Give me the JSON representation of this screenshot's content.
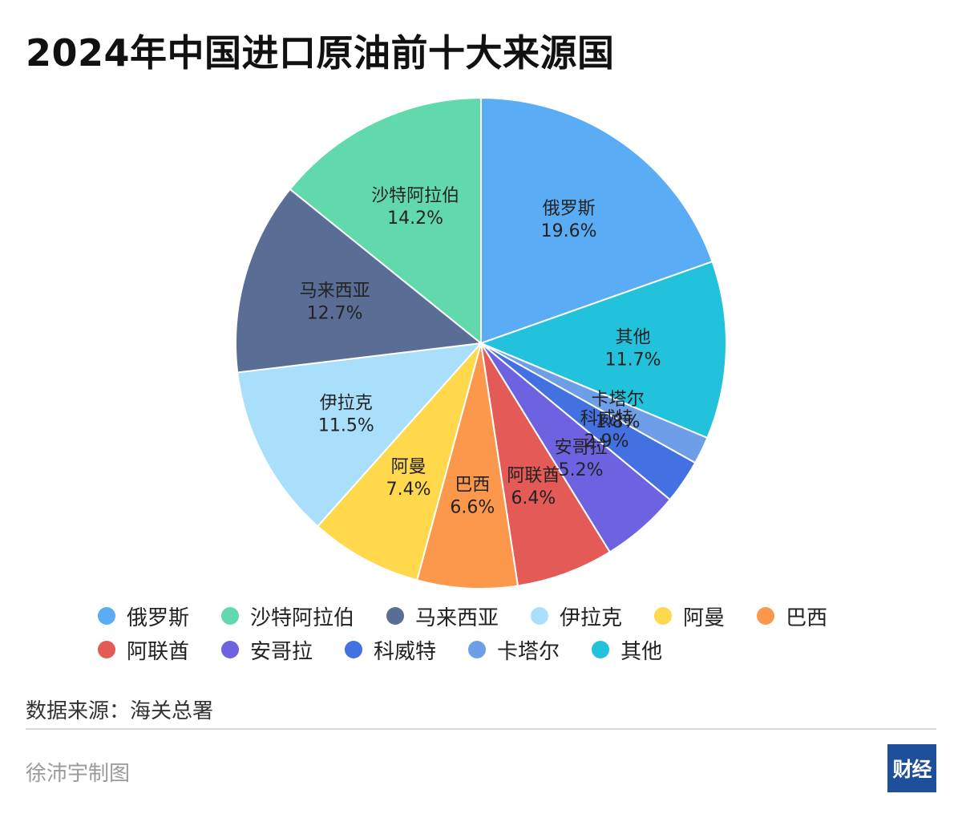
{
  "title": "2024年中国进口原油前十大来源国",
  "source": "数据来源：海关总署",
  "author": "徐沛宇制图",
  "logo_text": "财经",
  "chart_data": {
    "type": "pie",
    "title": "2024年中国进口原油前十大来源国",
    "start": "12 o'clock, clockwise",
    "legend_position": "bottom",
    "legend": [
      "俄罗斯",
      "沙特阿拉伯",
      "马来西亚",
      "伊拉克",
      "阿曼",
      "巴西",
      "阿联酋",
      "安哥拉",
      "科威特",
      "卡塔尔",
      "其他"
    ],
    "slices": [
      {
        "name": "俄罗斯",
        "value": 19.6,
        "label": "19.6%",
        "color": "#5aacf5"
      },
      {
        "name": "其他",
        "value": 11.7,
        "label": "11.7%",
        "color": "#22c1dc"
      },
      {
        "name": "卡塔尔",
        "value": 1.8,
        "label": "1.8%",
        "color": "#6e9ee7"
      },
      {
        "name": "科威特",
        "value": 2.9,
        "label": "2.9%",
        "color": "#4471e2"
      },
      {
        "name": "安哥拉",
        "value": 5.2,
        "label": "5.2%",
        "color": "#6d63e0"
      },
      {
        "name": "阿联酋",
        "value": 6.4,
        "label": "6.4%",
        "color": "#e35a57"
      },
      {
        "name": "巴西",
        "value": 6.6,
        "label": "6.6%",
        "color": "#fc984b"
      },
      {
        "name": "阿曼",
        "value": 7.4,
        "label": "7.4%",
        "color": "#ffd84c"
      },
      {
        "name": "伊拉克",
        "value": 11.5,
        "label": "11.5%",
        "color": "#a9dffa"
      },
      {
        "name": "马来西亚",
        "value": 12.7,
        "label": "12.7%",
        "color": "#5a6d95"
      },
      {
        "name": "沙特阿拉伯",
        "value": 14.2,
        "label": "14.2%",
        "color": "#61d9ac"
      }
    ]
  }
}
